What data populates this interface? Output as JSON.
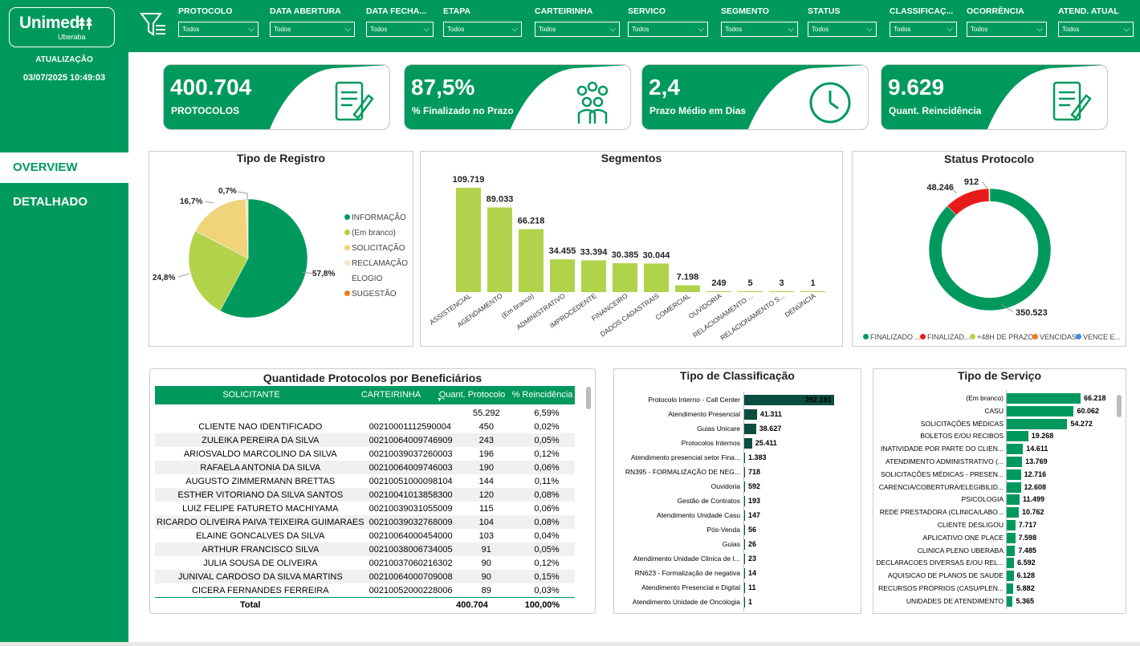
{
  "brand": {
    "name": "Unimed",
    "sub": "Uberaba",
    "color": "#00995d"
  },
  "update": {
    "label": "ATUALIZAÇÃO",
    "value": "03/07/2025 10:49:03"
  },
  "nav": [
    {
      "label": "OVERVIEW"
    },
    {
      "label": "DETALHADO"
    }
  ],
  "filters": [
    {
      "label": "PROTOCOLO",
      "value": "Todos"
    },
    {
      "label": "DATA ABERTURA",
      "value": "Todos"
    },
    {
      "label": "DATA FECHA...",
      "value": "Todos"
    },
    {
      "label": "ETAPA",
      "value": "Todos"
    },
    {
      "label": "CARTEIRINHA",
      "value": "Todos"
    },
    {
      "label": "SERVICO",
      "value": "Todos"
    },
    {
      "label": "SEGMENTO",
      "value": "Todos"
    },
    {
      "label": "STATUS",
      "value": "Todos"
    },
    {
      "label": "CLASSIFICAÇ...",
      "value": "Todos"
    },
    {
      "label": "OCORRÊNCIA",
      "value": "Todos"
    },
    {
      "label": "ATEND. ATUAL",
      "value": "Todos"
    }
  ],
  "kpis": [
    {
      "value": "400.704",
      "label": "PROTOCOLOS",
      "icon": "document-form-icon"
    },
    {
      "value": "87,5%",
      "label": "% Finalizado no Prazo",
      "icon": "people-group-icon"
    },
    {
      "value": "2,4",
      "label": "Prazo Médio em Dias",
      "icon": "clock-icon"
    },
    {
      "value": "9.629",
      "label": "Quant. Reincidência",
      "icon": "document-form-icon"
    }
  ],
  "charts": {
    "tipo_registro": {
      "title": "Tipo de Registro"
    },
    "segmentos": {
      "title": "Segmentos"
    },
    "status": {
      "title": "Status Protocolo"
    },
    "classificacao": {
      "title": "Tipo de Classificação"
    },
    "servico": {
      "title": "Tipo de Serviço"
    }
  },
  "chart_data": [
    {
      "type": "pie",
      "title": "Tipo de Registro",
      "categories": [
        "INFORMAÇÃO",
        "(Em branco)",
        "SOLICITAÇÃO",
        "RECLAMAÇÃO",
        "ELOGIO",
        "SUGESTÃO"
      ],
      "values": [
        57.8,
        24.8,
        16.7,
        0.7,
        0,
        0
      ],
      "data_labels": [
        "57,8%",
        "24,8%",
        "16,7%",
        "0,7%",
        "",
        ""
      ],
      "colors": [
        "#00995d",
        "#b1d34b",
        "#f0d37a",
        "#f8e6bd",
        "#f0f0e0",
        "#f27a1a"
      ],
      "legend": "right"
    },
    {
      "type": "bar",
      "title": "Segmentos",
      "categories": [
        "ASSISTENCIAL",
        "AGENDAMENTO",
        "(Em branco)",
        "ADMINISTRATIVO",
        "IMPROCEDENTE",
        "FINANCEIRO",
        "DADOS CADASTRAIS",
        "COMERCIAL",
        "OUVIDORIA",
        "RELACIONAMENTO ...",
        "RELACIONAMENTO S...",
        "DENÚNCIA"
      ],
      "values": [
        109719,
        89033,
        66218,
        34455,
        33394,
        30385,
        30044,
        7198,
        249,
        5,
        3,
        1
      ],
      "data_labels": [
        "109.719",
        "89.033",
        "66.218",
        "34.455",
        "33.394",
        "30.385",
        "30.044",
        "7.198",
        "249",
        "5",
        "3",
        "1"
      ],
      "color": "#b1d34b"
    },
    {
      "type": "pie",
      "title": "Status Protocolo",
      "categories": [
        "FINALIZADO ...",
        "FINALIZAD...",
        "+48H DE PRAZO",
        "VENCIDAS",
        "VENCE E..."
      ],
      "values": [
        350523,
        48246,
        912,
        0,
        0
      ],
      "data_labels": [
        "350.523",
        "48.246",
        "912",
        "",
        ""
      ],
      "colors": [
        "#00995d",
        "#e81b1b",
        "#b1d34b",
        "#f27a1a",
        "#3b8de0"
      ],
      "legend": "bottom"
    },
    {
      "type": "bar",
      "title": "Tipo de Classificação",
      "orientation": "horizontal",
      "categories": [
        "Protocolo Interno - Call Center",
        "Atendimento Presencial",
        "Guias Unicare",
        "Protocolos Internos",
        "Atendimento presencial setor Fina...",
        "RN395 - FORMALIZAÇÃO DE NEG...",
        "Ouvidoria",
        "Gestão de Contratos",
        "Atendimento Unidade Casu",
        "Pós-Venda",
        "Guias",
        "Atendimento Unidade Clinica de I...",
        "RN623 - Formalização de negativa",
        "Atendimento Presencial e Digital",
        "Atendimento Unidade de Oncologia"
      ],
      "values": [
        292191,
        41311,
        38627,
        25411,
        1383,
        718,
        592,
        193,
        147,
        56,
        26,
        23,
        14,
        11,
        1
      ],
      "data_labels": [
        "292.191",
        "41.311",
        "38.627",
        "25.411",
        "1.383",
        "718",
        "592",
        "193",
        "147",
        "56",
        "26",
        "23",
        "14",
        "11",
        "1"
      ],
      "color": "#0b4d3f"
    },
    {
      "type": "bar",
      "title": "Tipo de Serviço",
      "orientation": "horizontal",
      "categories": [
        "(Em branco)",
        "CASU",
        "SOLICITAÇÕES MÉDICAS",
        "BOLETOS E/OU RECIBOS",
        "INATIVIDADE POR PARTE DO CLIEN...",
        "ATENDIMENTO ADMINISTRATIVO (...",
        "SOLICITAÇÕES MÉDICAS - PRESEN...",
        "CARENCIA/COBERTURA/ELEGIBILID...",
        "PSICOLOGIA",
        "REDE PRESTADORA (CLINICA/LABO...",
        "CLIENTE DESLIGOU",
        "APLICATIVO ONE PLACE",
        "CLINICA PLENO UBERABA",
        "DECLARACOES DIVERSAS E/OU REL...",
        "AQUISICAO DE PLANOS DE SAUDE",
        "RECURSOS PRÓPRIOS (CASU/PLEN...",
        "UNIDADES DE ATENDIMENTO"
      ],
      "values": [
        66218,
        60062,
        54272,
        19268,
        14611,
        13769,
        12716,
        12608,
        11499,
        10762,
        7717,
        7598,
        7485,
        6592,
        6128,
        5882,
        5365
      ],
      "data_labels": [
        "66.218",
        "60.062",
        "54.272",
        "19.268",
        "14.611",
        "13.769",
        "12.716",
        "12.608",
        "11.499",
        "10.762",
        "7.717",
        "7.598",
        "7.485",
        "6.592",
        "6.128",
        "5.882",
        "5.365"
      ],
      "color": "#00995d"
    }
  ],
  "table": {
    "title": "Quantidade Protocolos por Beneficiários",
    "columns": [
      "SOLICITANTE",
      "CARTEIRINHA",
      "Quant. Protocolo",
      "% Reincidência"
    ],
    "rows": [
      [
        "",
        "",
        "55.292",
        "6,59%"
      ],
      [
        "CLIENTE NAO IDENTIFICADO",
        "00210001112590004",
        "450",
        "0,02%"
      ],
      [
        "ZULEIKA PEREIRA DA SILVA",
        "00210064009746909",
        "243",
        "0,05%"
      ],
      [
        "ARIOSVALDO MARCOLINO DA SILVA",
        "00210039037260003",
        "196",
        "0,12%"
      ],
      [
        "RAFAELA ANTONIA DA SILVA",
        "00210064009746003",
        "190",
        "0,06%"
      ],
      [
        "AUGUSTO ZIMMERMANN BRETTAS",
        "00210051000098104",
        "144",
        "0,11%"
      ],
      [
        "ESTHER VITORIANO DA SILVA SANTOS",
        "00210041013858300",
        "120",
        "0,08%"
      ],
      [
        "LUIZ FELIPE FATURETO MACHIYAMA",
        "00210039031055009",
        "115",
        "0,06%"
      ],
      [
        "RICARDO OLIVEIRA PAIVA TEIXEIRA GUIMARAES",
        "00210039032768009",
        "104",
        "0,08%"
      ],
      [
        "ELAINE GONCALVES DA SILVA",
        "00210064000454000",
        "103",
        "0,04%"
      ],
      [
        "ARTHUR FRANCISCO SILVA",
        "00210038006734005",
        "91",
        "0,05%"
      ],
      [
        "JULIA SOUSA DE OLIVEIRA",
        "00210037060216302",
        "90",
        "0,12%"
      ],
      [
        "JUNIVAL CARDOSO DA SILVA MARTINS",
        "00210064000709008",
        "90",
        "0,15%"
      ],
      [
        "CICERA FERNANDES FERREIRA",
        "00210052000228006",
        "89",
        "0,03%"
      ]
    ],
    "total": {
      "label": "Total",
      "quant": "400.704",
      "pct": "100,00%"
    }
  }
}
